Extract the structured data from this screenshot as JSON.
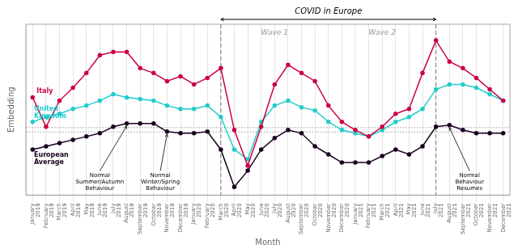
{
  "chart_data": {
    "type": "line",
    "xlabel": "Month",
    "ylabel": "Embedding",
    "categories": [
      "January\n2019",
      "February\n2019",
      "March\n2019",
      "April\n2019",
      "May\n2019",
      "June\n2019",
      "July\n2019",
      "August\n2019",
      "September\n2019",
      "October\n2019",
      "November\n2019",
      "December\n2019",
      "January\n2020",
      "February\n2020",
      "March\n2020",
      "April\n2020",
      "May\n2020",
      "June\n2020",
      "July\n2020",
      "August\n2020",
      "September\n2020",
      "October\n2020",
      "November\n2020",
      "December\n2020",
      "January\n2021",
      "February\n2021",
      "March\n2021",
      "April\n2021",
      "May\n2021",
      "June\n2021",
      "July\n2021",
      "August\n2021",
      "September\n2021",
      "October\n2021",
      "November\n2021",
      "December\n2021"
    ],
    "series": [
      {
        "name": "Italy",
        "color": "#cc0044",
        "marker": "circle",
        "values": [
          7.0,
          5.2,
          6.8,
          7.6,
          8.5,
          9.6,
          9.8,
          9.8,
          8.8,
          8.5,
          8.0,
          8.3,
          7.8,
          8.2,
          8.8,
          5.0,
          2.8,
          5.2,
          7.8,
          9.0,
          8.5,
          8.0,
          6.5,
          5.5,
          5.0,
          4.6,
          5.2,
          6.0,
          6.3,
          8.5,
          10.5,
          9.2,
          8.8,
          8.2,
          7.5,
          6.8
        ]
      },
      {
        "name": "United\nKingdom",
        "color": "#22cccc",
        "marker": "circle",
        "values": [
          5.5,
          5.8,
          6.0,
          6.3,
          6.5,
          6.8,
          7.2,
          7.0,
          6.9,
          6.8,
          6.5,
          6.3,
          6.3,
          6.5,
          5.8,
          3.8,
          3.2,
          5.5,
          6.5,
          6.8,
          6.4,
          6.2,
          5.5,
          5.0,
          4.8,
          4.6,
          5.0,
          5.5,
          5.8,
          6.3,
          7.5,
          7.8,
          7.8,
          7.6,
          7.2,
          6.8
        ]
      },
      {
        "name": "European\nAverage",
        "color": "#1a0020",
        "marker": "circle",
        "values": [
          3.8,
          4.0,
          4.2,
          4.4,
          4.6,
          4.8,
          5.2,
          5.4,
          5.4,
          5.4,
          4.9,
          4.8,
          4.8,
          4.9,
          3.8,
          1.5,
          2.5,
          3.8,
          4.5,
          5.0,
          4.8,
          4.0,
          3.5,
          3.0,
          3.0,
          3.0,
          3.4,
          3.8,
          3.5,
          4.0,
          5.2,
          5.3,
          5.0,
          4.8,
          4.8,
          4.8
        ]
      }
    ],
    "ylim": [
      1.0,
      11.5
    ],
    "tick_labels": "x",
    "grid": "x",
    "reference_lines": [
      {
        "y": 5.15,
        "line_style": "dotted"
      },
      {
        "y": 4.88,
        "line_style": "dotted"
      }
    ],
    "covid": {
      "label": "COVID in Europe",
      "start": "March\n2020",
      "end": "July\n2021",
      "line_style": "dashed"
    },
    "waves": [
      {
        "label": "Wave 1",
        "start": "March\n2020",
        "end": "November\n2020"
      },
      {
        "label": "Wave 2",
        "start": "November\n2020",
        "end": "July\n2021"
      }
    ],
    "annotations": [
      {
        "text": "Normal\nSummer/Autumn\nBehaviour",
        "category": "August\n2019",
        "series": "European\nAverage"
      },
      {
        "text": "Normal\nWinter/Spring\nBehaviour",
        "category": "November\n2019",
        "series": "European\nAverage"
      },
      {
        "text": "Normal\nBehaviour\nResumes",
        "category": "August\n2021",
        "series": "European\nAverage"
      }
    ]
  }
}
